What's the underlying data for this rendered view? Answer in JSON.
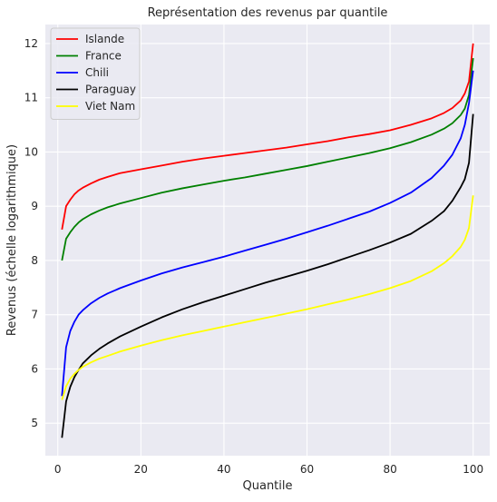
{
  "chart_data": {
    "type": "line",
    "title": "Représentation des revenus par quantile",
    "xlabel": "Quantile",
    "ylabel": "Revenus (échelle logarithmique)",
    "xlim": [
      -3,
      104
    ],
    "ylim": [
      4.4,
      12.35
    ],
    "xticks": [
      0,
      20,
      40,
      60,
      80,
      100
    ],
    "yticks": [
      5,
      6,
      7,
      8,
      9,
      10,
      11,
      12
    ],
    "grid": true,
    "background": "#eaeaf2",
    "legend_position": "top-left",
    "series": [
      {
        "name": "Islande",
        "color": "#ff0000",
        "points": [
          [
            1,
            8.57
          ],
          [
            2,
            9.0
          ],
          [
            3,
            9.12
          ],
          [
            4,
            9.22
          ],
          [
            5,
            9.29
          ],
          [
            6,
            9.34
          ],
          [
            8,
            9.42
          ],
          [
            10,
            9.49
          ],
          [
            12,
            9.54
          ],
          [
            15,
            9.61
          ],
          [
            20,
            9.68
          ],
          [
            25,
            9.75
          ],
          [
            30,
            9.82
          ],
          [
            35,
            9.88
          ],
          [
            40,
            9.93
          ],
          [
            45,
            9.98
          ],
          [
            50,
            10.03
          ],
          [
            55,
            10.08
          ],
          [
            60,
            10.14
          ],
          [
            65,
            10.2
          ],
          [
            70,
            10.27
          ],
          [
            75,
            10.33
          ],
          [
            80,
            10.4
          ],
          [
            85,
            10.5
          ],
          [
            90,
            10.62
          ],
          [
            93,
            10.72
          ],
          [
            95,
            10.81
          ],
          [
            97,
            10.95
          ],
          [
            98,
            11.08
          ],
          [
            99,
            11.3
          ],
          [
            100,
            12.0
          ]
        ]
      },
      {
        "name": "France",
        "color": "#008000",
        "points": [
          [
            1,
            8.0
          ],
          [
            2,
            8.4
          ],
          [
            3,
            8.52
          ],
          [
            4,
            8.62
          ],
          [
            5,
            8.7
          ],
          [
            6,
            8.76
          ],
          [
            8,
            8.85
          ],
          [
            10,
            8.92
          ],
          [
            12,
            8.98
          ],
          [
            15,
            9.05
          ],
          [
            20,
            9.15
          ],
          [
            25,
            9.25
          ],
          [
            30,
            9.33
          ],
          [
            35,
            9.4
          ],
          [
            40,
            9.47
          ],
          [
            45,
            9.53
          ],
          [
            50,
            9.6
          ],
          [
            55,
            9.67
          ],
          [
            60,
            9.74
          ],
          [
            65,
            9.82
          ],
          [
            70,
            9.9
          ],
          [
            75,
            9.98
          ],
          [
            80,
            10.07
          ],
          [
            85,
            10.18
          ],
          [
            90,
            10.32
          ],
          [
            93,
            10.43
          ],
          [
            95,
            10.53
          ],
          [
            97,
            10.68
          ],
          [
            98,
            10.8
          ],
          [
            99,
            11.05
          ],
          [
            100,
            11.73
          ]
        ]
      },
      {
        "name": "Chili",
        "color": "#0000ff",
        "points": [
          [
            1,
            5.5
          ],
          [
            2,
            6.4
          ],
          [
            3,
            6.7
          ],
          [
            4,
            6.87
          ],
          [
            5,
            7.0
          ],
          [
            6,
            7.08
          ],
          [
            8,
            7.21
          ],
          [
            10,
            7.31
          ],
          [
            12,
            7.39
          ],
          [
            15,
            7.49
          ],
          [
            20,
            7.63
          ],
          [
            25,
            7.76
          ],
          [
            30,
            7.87
          ],
          [
            35,
            7.97
          ],
          [
            40,
            8.07
          ],
          [
            45,
            8.18
          ],
          [
            50,
            8.29
          ],
          [
            55,
            8.4
          ],
          [
            60,
            8.52
          ],
          [
            65,
            8.64
          ],
          [
            70,
            8.77
          ],
          [
            75,
            8.9
          ],
          [
            80,
            9.06
          ],
          [
            85,
            9.25
          ],
          [
            90,
            9.52
          ],
          [
            93,
            9.75
          ],
          [
            95,
            9.95
          ],
          [
            97,
            10.25
          ],
          [
            98,
            10.5
          ],
          [
            99,
            10.9
          ],
          [
            100,
            11.5
          ]
        ]
      },
      {
        "name": "Paraguay",
        "color": "#000000",
        "points": [
          [
            1,
            4.73
          ],
          [
            2,
            5.4
          ],
          [
            3,
            5.67
          ],
          [
            4,
            5.85
          ],
          [
            5,
            5.98
          ],
          [
            6,
            6.1
          ],
          [
            8,
            6.25
          ],
          [
            10,
            6.37
          ],
          [
            12,
            6.47
          ],
          [
            15,
            6.6
          ],
          [
            20,
            6.78
          ],
          [
            25,
            6.95
          ],
          [
            30,
            7.1
          ],
          [
            35,
            7.23
          ],
          [
            40,
            7.35
          ],
          [
            45,
            7.47
          ],
          [
            50,
            7.59
          ],
          [
            55,
            7.7
          ],
          [
            60,
            7.81
          ],
          [
            65,
            7.93
          ],
          [
            70,
            8.06
          ],
          [
            75,
            8.19
          ],
          [
            80,
            8.33
          ],
          [
            85,
            8.49
          ],
          [
            90,
            8.73
          ],
          [
            93,
            8.91
          ],
          [
            95,
            9.1
          ],
          [
            97,
            9.35
          ],
          [
            98,
            9.5
          ],
          [
            99,
            9.8
          ],
          [
            100,
            10.7
          ]
        ]
      },
      {
        "name": "Viet Nam",
        "color": "#ffff00",
        "points": [
          [
            1,
            5.43
          ],
          [
            2,
            5.68
          ],
          [
            3,
            5.82
          ],
          [
            4,
            5.91
          ],
          [
            5,
            5.98
          ],
          [
            6,
            6.04
          ],
          [
            8,
            6.12
          ],
          [
            10,
            6.19
          ],
          [
            12,
            6.24
          ],
          [
            15,
            6.32
          ],
          [
            20,
            6.43
          ],
          [
            25,
            6.53
          ],
          [
            30,
            6.62
          ],
          [
            35,
            6.7
          ],
          [
            40,
            6.78
          ],
          [
            45,
            6.86
          ],
          [
            50,
            6.94
          ],
          [
            55,
            7.02
          ],
          [
            60,
            7.1
          ],
          [
            65,
            7.19
          ],
          [
            70,
            7.28
          ],
          [
            75,
            7.38
          ],
          [
            80,
            7.49
          ],
          [
            85,
            7.62
          ],
          [
            90,
            7.8
          ],
          [
            93,
            7.95
          ],
          [
            95,
            8.08
          ],
          [
            97,
            8.25
          ],
          [
            98,
            8.38
          ],
          [
            99,
            8.6
          ],
          [
            100,
            9.2
          ]
        ]
      }
    ]
  }
}
